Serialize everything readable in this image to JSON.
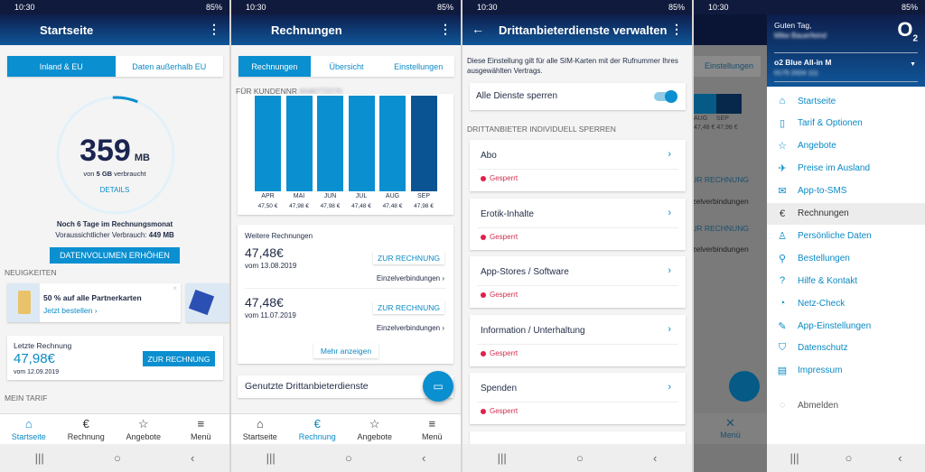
{
  "status": {
    "time": "10:30",
    "battery": "85%"
  },
  "colors": {
    "accent": "#0a8fd0",
    "bar_current": "#0a5494",
    "header": "#0f1e4c",
    "blocked": "#e0204a"
  },
  "screen1": {
    "title": "Startseite",
    "tabs": [
      "Inland & EU",
      "Daten außerhalb EU"
    ],
    "usage": {
      "value": "359",
      "unit": "MB",
      "used_prefix": "von ",
      "quota": "5 GB",
      "used_suffix": " verbraucht",
      "fraction_used": 0.07
    },
    "details": "DETAILS",
    "days_left": "Noch 6 Tage im Rechnungsmonat",
    "forecast_label": "Voraussichtlicher Verbrauch: ",
    "forecast_value": "449 MB",
    "increase_button": "DATENVOLUMEN ERHÖHEN",
    "news_label": "NEUIGKEITEN",
    "promo": {
      "title": "50 % auf alle Partnerkarten",
      "link": "Jetzt bestellen"
    },
    "last_bill": {
      "label": "Letzte Rechnung",
      "amount": "47,98€",
      "date": "vom 12.09.2019",
      "button": "ZUR RECHNUNG"
    },
    "tariff_label": "MEIN TARIF"
  },
  "nav": {
    "items": [
      "Startseite",
      "Rechnung",
      "Angebote",
      "Menü"
    ],
    "close": "Menü"
  },
  "screen2": {
    "title": "Rechnungen",
    "tabs": [
      "Rechnungen",
      "Übersicht",
      "Einstellungen"
    ],
    "customer_label": "FÜR KUNDENNR",
    "customer_no": "6046772270",
    "more_bills_label": "Weitere Rechnungen",
    "bills": [
      {
        "amount": "47,48€",
        "date": "vom 13.08.2019",
        "button": "ZUR RECHNUNG",
        "link": "Einzelverbindungen"
      },
      {
        "amount": "47,48€",
        "date": "vom 11.07.2019",
        "button": "ZUR RECHNUNG",
        "link": "Einzelverbindungen"
      }
    ],
    "more_button": "Mehr anzeigen",
    "third_party_label": "Genutzte Drittanbieterdienste"
  },
  "chart_data": {
    "type": "bar",
    "categories": [
      "APR",
      "MAI",
      "JUN",
      "JUL",
      "AUG",
      "SEP"
    ],
    "values": [
      47.5,
      47.98,
      47.98,
      47.48,
      47.48,
      47.98
    ],
    "value_labels": [
      "47,50 €",
      "47,98 €",
      "47,98 €",
      "47,48 €",
      "47,48 €",
      "47,98 €"
    ],
    "highlight": "SEP"
  },
  "screen3": {
    "title": "Drittanbieterdienste verwalten",
    "description": "Diese Einstellung gilt für alle SIM-Karten mit der Rufnummer Ihres ausgewählten Vertrags.",
    "block_all": {
      "label": "Alle Dienste sperren",
      "enabled": true
    },
    "section": "DRITTANBIETER INDIVIDUELL SPERREN",
    "services": [
      {
        "name": "Abo",
        "status": "Gesperrt"
      },
      {
        "name": "Erotik-Inhalte",
        "status": "Gesperrt"
      },
      {
        "name": "App-Stores / Software",
        "status": "Gesperrt"
      },
      {
        "name": "Information / Unterhaltung",
        "status": "Gesperrt"
      },
      {
        "name": "Spenden",
        "status": "Gesperrt"
      }
    ]
  },
  "screen4": {
    "greeting": "Guten Tag,",
    "user_name": "Mike Bauerfeind",
    "logo": "O2",
    "contract": "o2 Blue All-in M",
    "phone": "0175 2024 111",
    "bg_tab": "Einstellungen",
    "bg_months": [
      "AUG",
      "SEP"
    ],
    "bg_values": [
      "47,48 €",
      "47,98 €"
    ],
    "bg_bill_button": "ZUR RECHNUNG",
    "bg_link": "Einzelverbindungen",
    "menu": [
      {
        "label": "Startseite",
        "icon": "⌂"
      },
      {
        "label": "Tarif & Optionen",
        "icon": "▯"
      },
      {
        "label": "Angebote",
        "icon": "☆"
      },
      {
        "label": "Preise im Ausland",
        "icon": "✈"
      },
      {
        "label": "App-to-SMS",
        "icon": "✉"
      },
      {
        "label": "Rechnungen",
        "icon": "€"
      },
      {
        "label": "Persönliche Daten",
        "icon": "♙"
      },
      {
        "label": "Bestellungen",
        "icon": "⚲"
      },
      {
        "label": "Hilfe & Kontakt",
        "icon": "?"
      },
      {
        "label": "Netz-Check",
        "icon": "◔"
      },
      {
        "label": "App-Einstellungen",
        "icon": "✎"
      },
      {
        "label": "Datenschutz",
        "icon": "⛉"
      },
      {
        "label": "Impressum",
        "icon": "▤"
      }
    ],
    "logout": "Abmelden"
  }
}
